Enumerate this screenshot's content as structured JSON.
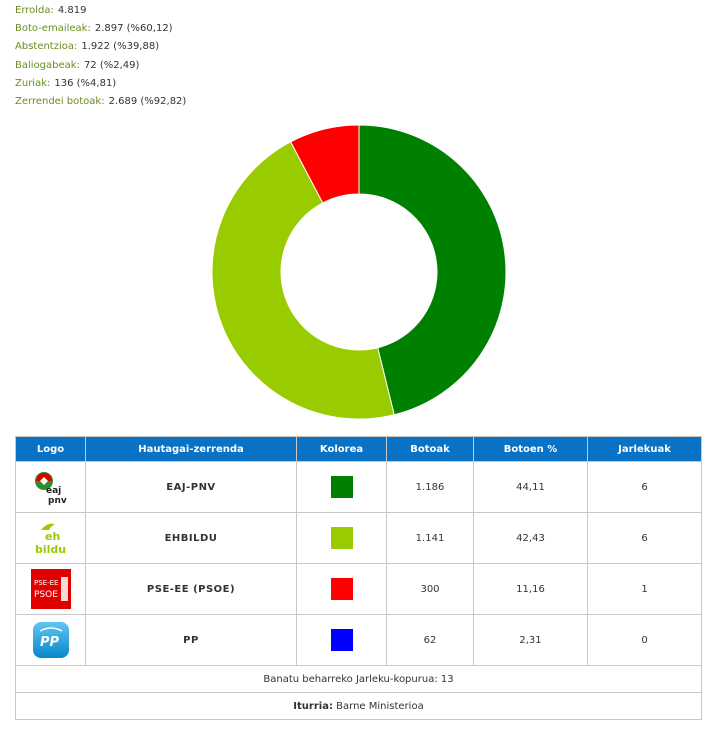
{
  "stats": [
    {
      "label": "Errolda:",
      "value": "4.819"
    },
    {
      "label": "Boto-emaileak:",
      "value": "2.897 (%60,12)"
    },
    {
      "label": "Abstentzioa:",
      "value": "1.922 (%39,88)"
    },
    {
      "label": "Baliogabeak:",
      "value": "72 (%2,49)"
    },
    {
      "label": "Zuriak:",
      "value": "136 (%4,81)"
    },
    {
      "label": "Zerrendei botoak:",
      "value": "2.689 (%92,82)"
    }
  ],
  "table": {
    "headers": {
      "logo": "Logo",
      "list": "Hautagai-zerrenda",
      "color": "Kolorea",
      "votes": "Botoak",
      "pct": "Botoen %",
      "seats": "Jarlekuak"
    },
    "rows": [
      {
        "logo_icon": "eaj-pnv-logo-icon",
        "logo_text": "eaj pnv",
        "name": "EAJ-PNV",
        "color": "#008000",
        "votes": "1.186",
        "pct": "44,11",
        "seats": "6"
      },
      {
        "logo_icon": "ehbildu-logo-icon",
        "logo_text": "eh bildu",
        "name": "EHBILDU",
        "color": "#99cc00",
        "votes": "1.141",
        "pct": "42,43",
        "seats": "6"
      },
      {
        "logo_icon": "pse-ee-psoe-logo-icon",
        "logo_text": "PSE-EE PSOE",
        "name": "PSE-EE (PSOE)",
        "color": "#ff0000",
        "votes": "300",
        "pct": "11,16",
        "seats": "1"
      },
      {
        "logo_icon": "pp-logo-icon",
        "logo_text": "PP",
        "name": "PP",
        "color": "#0000ff",
        "votes": "62",
        "pct": "2,31",
        "seats": "0"
      }
    ],
    "threshold_text": "Banatu beharreko Jarleku-kopurua: 13",
    "source_label": "Iturria:",
    "source_value": "Barne Ministerioa"
  },
  "chart_data": {
    "type": "pie",
    "variant": "donut",
    "categories": [
      "EAJ-PNV",
      "EHBILDU",
      "PSE-EE (PSOE)",
      "PP"
    ],
    "values": [
      6,
      6,
      1,
      0
    ],
    "colors": [
      "#008000",
      "#99cc00",
      "#ff0000",
      "#0000ff"
    ]
  }
}
